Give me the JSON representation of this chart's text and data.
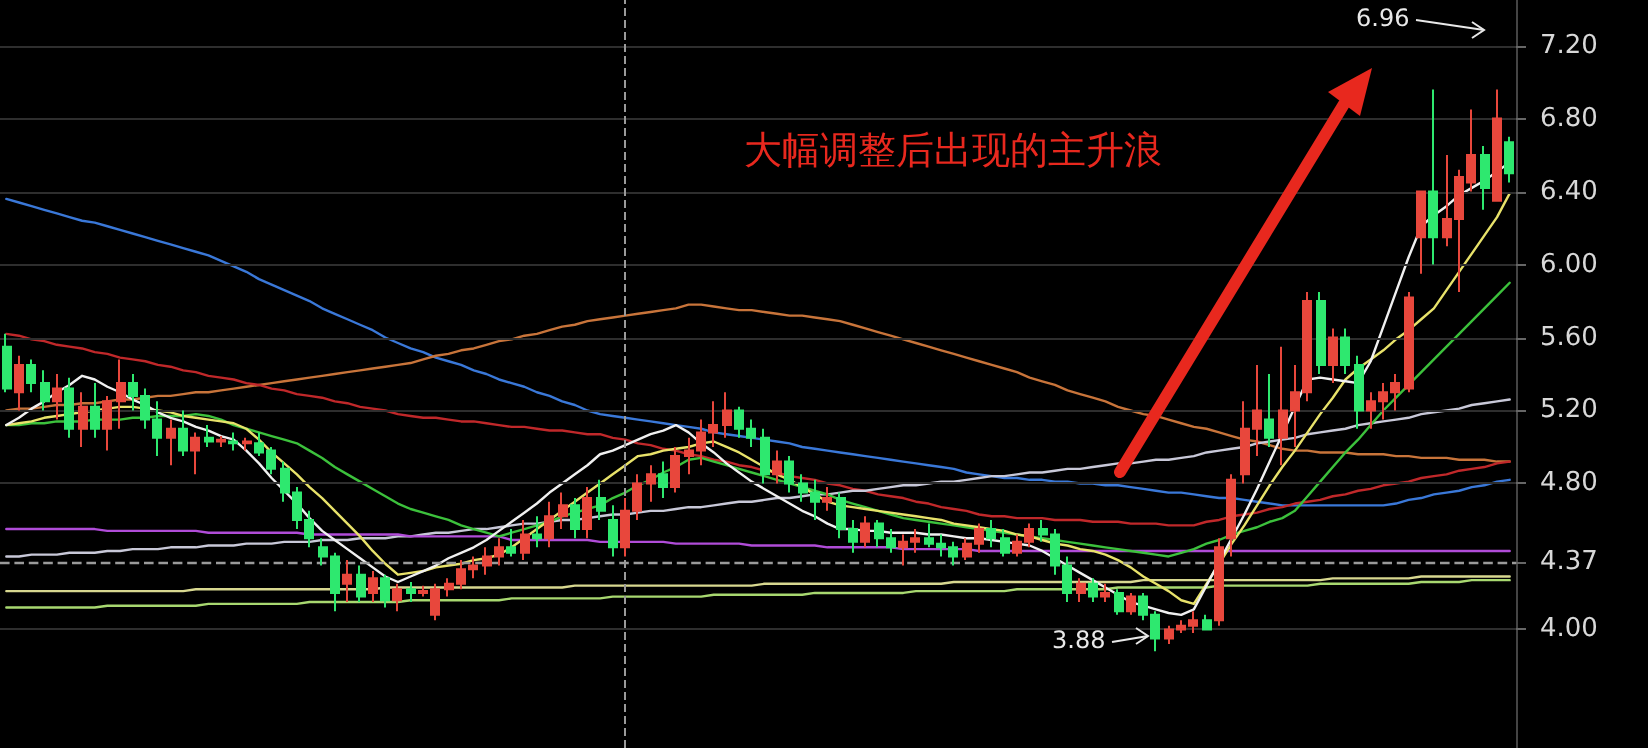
{
  "chart_data": {
    "type": "candlestick",
    "categories": [
      null,
      null,
      null,
      null,
      null,
      null,
      null,
      null,
      null,
      null,
      null,
      null,
      null,
      null,
      null,
      null,
      null,
      null,
      null,
      null,
      null,
      null,
      null,
      null,
      null,
      null,
      null,
      null,
      null,
      null,
      null,
      null,
      null,
      null,
      null,
      null,
      null,
      null,
      null,
      null,
      null,
      null,
      null,
      null,
      null,
      null,
      null,
      null,
      null,
      null,
      null,
      null,
      null,
      null,
      null,
      null,
      null,
      null,
      null,
      null,
      null,
      null,
      null,
      null,
      null,
      null,
      null,
      null,
      null,
      null,
      null,
      null,
      null,
      null,
      null,
      null,
      null,
      null,
      null,
      null,
      null,
      null,
      null,
      null,
      null,
      null,
      null,
      null,
      null,
      null,
      null,
      null,
      null,
      null,
      null,
      null,
      null,
      null,
      null,
      null,
      null,
      null,
      null,
      null,
      null,
      null,
      null,
      null,
      null,
      null,
      null,
      null,
      null,
      null,
      null,
      null,
      null,
      null,
      null,
      null
    ],
    "ohlc": [
      [
        5.55,
        5.62,
        5.3,
        5.32
      ],
      [
        5.3,
        5.5,
        5.2,
        5.45
      ],
      [
        5.45,
        5.48,
        5.3,
        5.35
      ],
      [
        5.35,
        5.42,
        5.2,
        5.25
      ],
      [
        5.25,
        5.4,
        5.15,
        5.32
      ],
      [
        5.32,
        5.38,
        5.05,
        5.1
      ],
      [
        5.1,
        5.3,
        5.0,
        5.22
      ],
      [
        5.22,
        5.35,
        5.05,
        5.1
      ],
      [
        5.1,
        5.28,
        4.98,
        5.25
      ],
      [
        5.25,
        5.48,
        5.1,
        5.35
      ],
      [
        5.35,
        5.4,
        5.2,
        5.28
      ],
      [
        5.28,
        5.32,
        5.1,
        5.15
      ],
      [
        5.15,
        5.25,
        4.95,
        5.05
      ],
      [
        5.05,
        5.15,
        4.9,
        5.1
      ],
      [
        5.1,
        5.2,
        4.95,
        4.98
      ],
      [
        4.98,
        5.08,
        4.85,
        5.05
      ],
      [
        5.05,
        5.12,
        5.0,
        5.03
      ],
      [
        5.03,
        5.06,
        5.0,
        5.04
      ],
      [
        5.03,
        5.08,
        4.98,
        5.02
      ],
      [
        5.02,
        5.05,
        4.98,
        5.03
      ],
      [
        5.02,
        5.08,
        4.95,
        4.97
      ],
      [
        4.98,
        5.0,
        4.85,
        4.88
      ],
      [
        4.88,
        4.92,
        4.7,
        4.75
      ],
      [
        4.75,
        4.78,
        4.55,
        4.6
      ],
      [
        4.6,
        4.65,
        4.45,
        4.5
      ],
      [
        4.45,
        4.5,
        4.35,
        4.4
      ],
      [
        4.4,
        4.42,
        4.1,
        4.2
      ],
      [
        4.25,
        4.38,
        4.15,
        4.3
      ],
      [
        4.3,
        4.35,
        4.15,
        4.18
      ],
      [
        4.2,
        4.32,
        4.15,
        4.28
      ],
      [
        4.28,
        4.3,
        4.12,
        4.16
      ],
      [
        4.16,
        4.25,
        4.1,
        4.22
      ],
      [
        4.22,
        4.26,
        4.15,
        4.2
      ],
      [
        4.2,
        4.24,
        4.18,
        4.21
      ],
      [
        4.08,
        4.25,
        4.05,
        4.22
      ],
      [
        4.22,
        4.28,
        4.18,
        4.25
      ],
      [
        4.25,
        4.38,
        4.22,
        4.33
      ],
      [
        4.33,
        4.4,
        4.28,
        4.35
      ],
      [
        4.35,
        4.45,
        4.3,
        4.4
      ],
      [
        4.4,
        4.5,
        4.35,
        4.45
      ],
      [
        4.45,
        4.55,
        4.4,
        4.42
      ],
      [
        4.42,
        4.6,
        4.38,
        4.52
      ],
      [
        4.52,
        4.62,
        4.45,
        4.5
      ],
      [
        4.5,
        4.7,
        4.45,
        4.62
      ],
      [
        4.62,
        4.75,
        4.55,
        4.68
      ],
      [
        4.68,
        4.72,
        4.5,
        4.55
      ],
      [
        4.55,
        4.78,
        4.5,
        4.72
      ],
      [
        4.72,
        4.82,
        4.6,
        4.65
      ],
      [
        4.6,
        4.68,
        4.4,
        4.45
      ],
      [
        4.45,
        4.72,
        4.4,
        4.65
      ],
      [
        4.65,
        4.85,
        4.6,
        4.8
      ],
      [
        4.8,
        4.9,
        4.7,
        4.85
      ],
      [
        4.85,
        4.92,
        4.72,
        4.78
      ],
      [
        4.78,
        5.0,
        4.75,
        4.95
      ],
      [
        4.95,
        5.05,
        4.85,
        4.98
      ],
      [
        4.98,
        5.15,
        4.9,
        5.08
      ],
      [
        5.08,
        5.25,
        5.0,
        5.12
      ],
      [
        5.12,
        5.3,
        5.05,
        5.2
      ],
      [
        5.2,
        5.22,
        5.05,
        5.1
      ],
      [
        5.1,
        5.15,
        5.0,
        5.05
      ],
      [
        5.05,
        5.1,
        4.8,
        4.85
      ],
      [
        4.85,
        4.98,
        4.8,
        4.92
      ],
      [
        4.92,
        4.95,
        4.75,
        4.8
      ],
      [
        4.8,
        4.85,
        4.7,
        4.75
      ],
      [
        4.75,
        4.82,
        4.6,
        4.7
      ],
      [
        4.7,
        4.78,
        4.65,
        4.72
      ],
      [
        4.72,
        4.75,
        4.5,
        4.55
      ],
      [
        4.55,
        4.6,
        4.42,
        4.48
      ],
      [
        4.48,
        4.62,
        4.45,
        4.58
      ],
      [
        4.58,
        4.6,
        4.45,
        4.5
      ],
      [
        4.5,
        4.55,
        4.42,
        4.45
      ],
      [
        4.45,
        4.52,
        4.35,
        4.48
      ],
      [
        4.48,
        4.55,
        4.42,
        4.5
      ],
      [
        4.5,
        4.58,
        4.45,
        4.47
      ],
      [
        4.47,
        4.52,
        4.4,
        4.45
      ],
      [
        4.45,
        4.48,
        4.35,
        4.4
      ],
      [
        4.4,
        4.5,
        4.38,
        4.47
      ],
      [
        4.47,
        4.58,
        4.42,
        4.55
      ],
      [
        4.55,
        4.6,
        4.45,
        4.5
      ],
      [
        4.5,
        4.55,
        4.4,
        4.42
      ],
      [
        4.42,
        4.52,
        4.4,
        4.48
      ],
      [
        4.48,
        4.58,
        4.45,
        4.55
      ],
      [
        4.55,
        4.6,
        4.48,
        4.52
      ],
      [
        4.52,
        4.55,
        4.3,
        4.35
      ],
      [
        4.35,
        4.4,
        4.15,
        4.2
      ],
      [
        4.2,
        4.28,
        4.15,
        4.25
      ],
      [
        4.25,
        4.28,
        4.15,
        4.18
      ],
      [
        4.18,
        4.25,
        4.15,
        4.2
      ],
      [
        4.2,
        4.22,
        4.08,
        4.1
      ],
      [
        4.1,
        4.2,
        4.08,
        4.18
      ],
      [
        4.18,
        4.2,
        4.05,
        4.08
      ],
      [
        4.08,
        4.1,
        3.88,
        3.95
      ],
      [
        3.95,
        4.02,
        3.92,
        4.0
      ],
      [
        4.0,
        4.05,
        3.98,
        4.02
      ],
      [
        4.02,
        4.1,
        3.98,
        4.05
      ],
      [
        4.05,
        4.08,
        4.0,
        4.0
      ],
      [
        4.05,
        4.5,
        4.02,
        4.45
      ],
      [
        4.5,
        4.85,
        4.4,
        4.82
      ],
      [
        4.85,
        5.25,
        4.8,
        5.1
      ],
      [
        5.1,
        5.45,
        4.95,
        5.2
      ],
      [
        5.15,
        5.4,
        5.0,
        5.05
      ],
      [
        5.05,
        5.55,
        4.9,
        5.2
      ],
      [
        5.2,
        5.45,
        5.0,
        5.3
      ],
      [
        5.3,
        5.85,
        5.25,
        5.8
      ],
      [
        5.8,
        5.85,
        5.4,
        5.45
      ],
      [
        5.45,
        5.65,
        5.35,
        5.6
      ],
      [
        5.6,
        5.65,
        5.4,
        5.45
      ],
      [
        5.45,
        5.5,
        5.1,
        5.2
      ],
      [
        5.2,
        5.3,
        5.1,
        5.25
      ],
      [
        5.25,
        5.35,
        5.15,
        5.3
      ],
      [
        5.3,
        5.4,
        5.2,
        5.35
      ],
      [
        5.32,
        5.85,
        5.3,
        5.82
      ],
      [
        6.15,
        6.4,
        5.95,
        6.4
      ],
      [
        6.4,
        6.96,
        6.0,
        6.15
      ],
      [
        6.15,
        6.6,
        6.1,
        6.25
      ],
      [
        6.25,
        6.52,
        5.85,
        6.48
      ],
      [
        6.45,
        6.85,
        6.4,
        6.6
      ],
      [
        6.6,
        6.65,
        6.3,
        6.42
      ],
      [
        6.35,
        6.96,
        6.35,
        6.8
      ],
      [
        6.67,
        6.7,
        6.45,
        6.5
      ]
    ],
    "colors": [
      "#2ee86f",
      "#e8473c",
      "#2ee86f",
      "#2ee86f",
      "#e8473c",
      "#2ee86f",
      "#e8473c",
      "#2ee86f",
      "#e8473c",
      "#e8473c",
      "#2ee86f",
      "#2ee86f",
      "#2ee86f",
      "#e8473c",
      "#2ee86f",
      "#e8473c",
      "#2ee86f",
      "#e8473c",
      "#2ee86f",
      "#e8473c",
      "#2ee86f",
      "#2ee86f",
      "#2ee86f",
      "#2ee86f",
      "#2ee86f",
      "#2ee86f",
      "#2ee86f",
      "#e8473c",
      "#2ee86f",
      "#e8473c",
      "#2ee86f",
      "#e8473c",
      "#2ee86f",
      "#e8473c",
      "#e8473c",
      "#e8473c",
      "#e8473c",
      "#e8473c",
      "#e8473c",
      "#e8473c",
      "#2ee86f",
      "#e8473c",
      "#2ee86f",
      "#e8473c",
      "#e8473c",
      "#2ee86f",
      "#e8473c",
      "#2ee86f",
      "#2ee86f",
      "#e8473c",
      "#e8473c",
      "#e8473c",
      "#2ee86f",
      "#e8473c",
      "#e8473c",
      "#e8473c",
      "#e8473c",
      "#e8473c",
      "#2ee86f",
      "#2ee86f",
      "#2ee86f",
      "#e8473c",
      "#2ee86f",
      "#2ee86f",
      "#2ee86f",
      "#e8473c",
      "#2ee86f",
      "#2ee86f",
      "#e8473c",
      "#2ee86f",
      "#2ee86f",
      "#e8473c",
      "#e8473c",
      "#2ee86f",
      "#2ee86f",
      "#2ee86f",
      "#e8473c",
      "#e8473c",
      "#2ee86f",
      "#2ee86f",
      "#e8473c",
      "#e8473c",
      "#2ee86f",
      "#2ee86f",
      "#2ee86f",
      "#e8473c",
      "#2ee86f",
      "#e8473c",
      "#2ee86f",
      "#e8473c",
      "#2ee86f",
      "#2ee86f",
      "#e8473c",
      "#e8473c",
      "#e8473c",
      "#2ee86f",
      "#e8473c",
      "#e8473c",
      "#e8473c",
      "#e8473c",
      "#2ee86f",
      "#e8473c",
      "#e8473c",
      "#e8473c",
      "#2ee86f",
      "#e8473c",
      "#2ee86f",
      "#2ee86f",
      "#e8473c",
      "#e8473c",
      "#e8473c",
      "#e8473c",
      "#e8473c",
      "#2ee86f",
      "#e8473c",
      "#e8473c",
      "#e8473c",
      "#2ee86f",
      "#e8473c",
      "#2ee86f"
    ],
    "series": [
      {
        "type": "line",
        "color": "#3a78d8",
        "values": [
          6.36,
          6.34,
          6.32,
          6.3,
          6.28,
          6.26,
          6.24,
          6.23,
          6.21,
          6.19,
          6.17,
          6.15,
          6.13,
          6.11,
          6.09,
          6.07,
          6.05,
          6.02,
          5.99,
          5.96,
          5.92,
          5.89,
          5.86,
          5.83,
          5.8,
          5.76,
          5.73,
          5.7,
          5.67,
          5.64,
          5.6,
          5.57,
          5.54,
          5.52,
          5.49,
          5.47,
          5.45,
          5.42,
          5.4,
          5.37,
          5.35,
          5.33,
          5.3,
          5.28,
          5.25,
          5.23,
          5.2,
          5.18,
          5.17,
          5.16,
          5.15,
          5.14,
          5.13,
          5.12,
          5.11,
          5.1,
          5.08,
          5.07,
          5.06,
          5.05,
          5.04,
          5.03,
          5.02,
          5.0,
          4.99,
          4.98,
          4.97,
          4.96,
          4.95,
          4.94,
          4.93,
          4.92,
          4.91,
          4.9,
          4.89,
          4.88,
          4.86,
          4.85,
          4.84,
          4.83,
          4.83,
          4.82,
          4.82,
          4.81,
          4.81,
          4.8,
          4.8,
          4.79,
          4.79,
          4.78,
          4.77,
          4.76,
          4.75,
          4.75,
          4.74,
          4.73,
          4.72,
          4.72,
          4.71,
          4.7,
          4.69,
          4.68,
          4.68,
          4.68,
          4.68,
          4.68,
          4.68,
          4.68,
          4.68,
          4.68,
          4.69,
          4.71,
          4.72,
          4.74,
          4.75,
          4.76,
          4.78,
          4.79,
          4.81,
          4.82
        ]
      },
      {
        "type": "line",
        "color": "#c8743a",
        "values": [
          5.2,
          5.21,
          5.21,
          5.22,
          5.23,
          5.23,
          5.24,
          5.24,
          5.25,
          5.26,
          5.26,
          5.27,
          5.28,
          5.28,
          5.29,
          5.3,
          5.3,
          5.31,
          5.32,
          5.33,
          5.34,
          5.35,
          5.36,
          5.37,
          5.38,
          5.39,
          5.4,
          5.41,
          5.42,
          5.43,
          5.44,
          5.45,
          5.46,
          5.48,
          5.5,
          5.51,
          5.53,
          5.54,
          5.56,
          5.58,
          5.59,
          5.61,
          5.62,
          5.64,
          5.66,
          5.67,
          5.69,
          5.7,
          5.71,
          5.72,
          5.73,
          5.74,
          5.75,
          5.76,
          5.78,
          5.78,
          5.77,
          5.76,
          5.75,
          5.75,
          5.74,
          5.73,
          5.72,
          5.72,
          5.71,
          5.7,
          5.69,
          5.67,
          5.65,
          5.63,
          5.61,
          5.59,
          5.57,
          5.55,
          5.53,
          5.51,
          5.49,
          5.47,
          5.45,
          5.43,
          5.41,
          5.38,
          5.36,
          5.34,
          5.31,
          5.29,
          5.27,
          5.25,
          5.22,
          5.2,
          5.18,
          5.17,
          5.15,
          5.13,
          5.11,
          5.1,
          5.08,
          5.06,
          5.04,
          5.03,
          5.01,
          4.99,
          4.98,
          4.98,
          4.97,
          4.97,
          4.97,
          4.96,
          4.96,
          4.96,
          4.95,
          4.95,
          4.94,
          4.94,
          4.94,
          4.93,
          4.93,
          4.93,
          4.92,
          4.92
        ]
      },
      {
        "type": "line",
        "color": "#c0282a",
        "values": [
          5.62,
          5.61,
          5.59,
          5.58,
          5.56,
          5.55,
          5.54,
          5.52,
          5.51,
          5.49,
          5.48,
          5.47,
          5.45,
          5.44,
          5.42,
          5.41,
          5.39,
          5.38,
          5.37,
          5.35,
          5.34,
          5.32,
          5.31,
          5.29,
          5.28,
          5.27,
          5.25,
          5.24,
          5.22,
          5.21,
          5.2,
          5.18,
          5.17,
          5.16,
          5.16,
          5.15,
          5.14,
          5.14,
          5.13,
          5.12,
          5.11,
          5.11,
          5.1,
          5.09,
          5.09,
          5.08,
          5.07,
          5.07,
          5.05,
          5.04,
          5.02,
          5.01,
          4.99,
          4.98,
          4.96,
          4.95,
          4.93,
          4.92,
          4.9,
          4.89,
          4.87,
          4.86,
          4.84,
          4.83,
          4.82,
          4.8,
          4.79,
          4.77,
          4.76,
          4.74,
          4.73,
          4.72,
          4.7,
          4.69,
          4.67,
          4.66,
          4.65,
          4.63,
          4.62,
          4.62,
          4.61,
          4.61,
          4.61,
          4.6,
          4.6,
          4.6,
          4.59,
          4.59,
          4.59,
          4.58,
          4.58,
          4.58,
          4.57,
          4.57,
          4.57,
          4.59,
          4.6,
          4.62,
          4.63,
          4.64,
          4.66,
          4.67,
          4.69,
          4.7,
          4.71,
          4.73,
          4.74,
          4.76,
          4.77,
          4.79,
          4.8,
          4.81,
          4.83,
          4.84,
          4.85,
          4.87,
          4.88,
          4.89,
          4.91,
          4.92
        ]
      },
      {
        "type": "line",
        "color": "#c8c8d8",
        "values": [
          4.4,
          4.4,
          4.41,
          4.41,
          4.41,
          4.42,
          4.42,
          4.42,
          4.43,
          4.43,
          4.44,
          4.44,
          4.44,
          4.45,
          4.45,
          4.45,
          4.46,
          4.46,
          4.46,
          4.47,
          4.47,
          4.47,
          4.48,
          4.48,
          4.48,
          4.49,
          4.49,
          4.49,
          4.5,
          4.5,
          4.5,
          4.51,
          4.51,
          4.52,
          4.53,
          4.53,
          4.54,
          4.55,
          4.55,
          4.56,
          4.57,
          4.58,
          4.58,
          4.59,
          4.6,
          4.6,
          4.61,
          4.62,
          4.63,
          4.63,
          4.64,
          4.65,
          4.65,
          4.66,
          4.67,
          4.67,
          4.68,
          4.69,
          4.7,
          4.7,
          4.71,
          4.72,
          4.72,
          4.73,
          4.74,
          4.74,
          4.75,
          4.76,
          4.76,
          4.77,
          4.78,
          4.79,
          4.79,
          4.8,
          4.81,
          4.81,
          4.82,
          4.83,
          4.84,
          4.84,
          4.85,
          4.86,
          4.86,
          4.87,
          4.88,
          4.88,
          4.89,
          4.9,
          4.91,
          4.91,
          4.92,
          4.93,
          4.93,
          4.94,
          4.95,
          4.97,
          4.98,
          4.99,
          5.0,
          5.02,
          5.03,
          5.04,
          5.05,
          5.07,
          5.08,
          5.09,
          5.1,
          5.12,
          5.13,
          5.14,
          5.15,
          5.16,
          5.18,
          5.19,
          5.2,
          5.21,
          5.23,
          5.24,
          5.25,
          5.26
        ]
      },
      {
        "type": "line",
        "color": "#b04cd8",
        "values": [
          4.55,
          4.55,
          4.55,
          4.55,
          4.55,
          4.55,
          4.55,
          4.55,
          4.54,
          4.54,
          4.54,
          4.54,
          4.54,
          4.54,
          4.54,
          4.54,
          4.53,
          4.53,
          4.53,
          4.53,
          4.53,
          4.53,
          4.53,
          4.53,
          4.52,
          4.52,
          4.52,
          4.52,
          4.52,
          4.52,
          4.52,
          4.52,
          4.51,
          4.51,
          4.51,
          4.51,
          4.51,
          4.51,
          4.51,
          4.51,
          4.49,
          4.49,
          4.49,
          4.49,
          4.49,
          4.49,
          4.49,
          4.48,
          4.48,
          4.48,
          4.48,
          4.48,
          4.48,
          4.47,
          4.47,
          4.47,
          4.47,
          4.47,
          4.47,
          4.46,
          4.46,
          4.46,
          4.46,
          4.46,
          4.46,
          4.45,
          4.45,
          4.45,
          4.45,
          4.45,
          4.45,
          4.44,
          4.44,
          4.44,
          4.44,
          4.44,
          4.44,
          4.43,
          4.43,
          4.43,
          4.43,
          4.43,
          4.43,
          4.43,
          4.43,
          4.43,
          4.43,
          4.43,
          4.43,
          4.43,
          4.43,
          4.43,
          4.43,
          4.43,
          4.43,
          4.43,
          4.43,
          4.43,
          4.43,
          4.43,
          4.43,
          4.43,
          4.43,
          4.43,
          4.43,
          4.43,
          4.43,
          4.43,
          4.43,
          4.43,
          4.43,
          4.43,
          4.43,
          4.43,
          4.43,
          4.43,
          4.43,
          4.43,
          4.43,
          4.43
        ]
      },
      {
        "type": "line",
        "color": "#d8d890",
        "values": [
          4.21,
          4.21,
          4.21,
          4.21,
          4.21,
          4.21,
          4.21,
          4.21,
          4.21,
          4.21,
          4.21,
          4.21,
          4.21,
          4.21,
          4.21,
          4.22,
          4.22,
          4.22,
          4.22,
          4.22,
          4.22,
          4.22,
          4.22,
          4.22,
          4.22,
          4.22,
          4.22,
          4.22,
          4.22,
          4.22,
          4.23,
          4.23,
          4.23,
          4.23,
          4.23,
          4.23,
          4.23,
          4.23,
          4.23,
          4.23,
          4.23,
          4.23,
          4.23,
          4.23,
          4.23,
          4.24,
          4.24,
          4.24,
          4.24,
          4.24,
          4.24,
          4.24,
          4.24,
          4.24,
          4.24,
          4.24,
          4.24,
          4.24,
          4.24,
          4.24,
          4.25,
          4.25,
          4.25,
          4.25,
          4.25,
          4.25,
          4.25,
          4.25,
          4.25,
          4.25,
          4.25,
          4.25,
          4.25,
          4.25,
          4.25,
          4.26,
          4.26,
          4.26,
          4.26,
          4.26,
          4.26,
          4.26,
          4.26,
          4.26,
          4.26,
          4.26,
          4.26,
          4.26,
          4.26,
          4.26,
          4.27,
          4.27,
          4.27,
          4.27,
          4.27,
          4.27,
          4.27,
          4.27,
          4.27,
          4.27,
          4.27,
          4.27,
          4.27,
          4.27,
          4.27,
          4.28,
          4.28,
          4.28,
          4.28,
          4.28,
          4.28,
          4.28,
          4.29,
          4.29,
          4.29,
          4.29,
          4.29,
          4.29,
          4.29,
          4.29
        ]
      },
      {
        "type": "line",
        "color": "#a8d870",
        "values": [
          4.12,
          4.12,
          4.12,
          4.12,
          4.12,
          4.12,
          4.12,
          4.12,
          4.13,
          4.13,
          4.13,
          4.13,
          4.13,
          4.13,
          4.13,
          4.13,
          4.14,
          4.14,
          4.14,
          4.14,
          4.14,
          4.14,
          4.14,
          4.14,
          4.15,
          4.15,
          4.15,
          4.15,
          4.15,
          4.15,
          4.15,
          4.15,
          4.16,
          4.16,
          4.16,
          4.16,
          4.16,
          4.16,
          4.16,
          4.16,
          4.17,
          4.17,
          4.17,
          4.17,
          4.17,
          4.17,
          4.17,
          4.17,
          4.18,
          4.18,
          4.18,
          4.18,
          4.18,
          4.18,
          4.18,
          4.18,
          4.19,
          4.19,
          4.19,
          4.19,
          4.19,
          4.19,
          4.19,
          4.19,
          4.2,
          4.2,
          4.2,
          4.2,
          4.2,
          4.2,
          4.2,
          4.2,
          4.21,
          4.21,
          4.21,
          4.21,
          4.21,
          4.21,
          4.21,
          4.21,
          4.22,
          4.22,
          4.22,
          4.22,
          4.22,
          4.22,
          4.22,
          4.22,
          4.23,
          4.23,
          4.23,
          4.23,
          4.23,
          4.23,
          4.23,
          4.23,
          4.24,
          4.24,
          4.24,
          4.24,
          4.24,
          4.24,
          4.24,
          4.24,
          4.25,
          4.25,
          4.25,
          4.25,
          4.25,
          4.25,
          4.25,
          4.25,
          4.26,
          4.26,
          4.26,
          4.26,
          4.27,
          4.27,
          4.27,
          4.27
        ]
      },
      {
        "type": "line",
        "color": "#3cc13c",
        "values": [
          5.12,
          5.12,
          5.13,
          5.13,
          5.14,
          5.14,
          5.14,
          5.15,
          5.15,
          5.15,
          5.16,
          5.16,
          5.17,
          5.17,
          5.17,
          5.18,
          5.17,
          5.15,
          5.12,
          5.1,
          5.08,
          5.06,
          5.04,
          5.02,
          4.98,
          4.94,
          4.89,
          4.85,
          4.81,
          4.77,
          4.73,
          4.69,
          4.66,
          4.64,
          4.62,
          4.6,
          4.57,
          4.55,
          4.53,
          4.51,
          4.53,
          4.55,
          4.57,
          4.59,
          4.62,
          4.64,
          4.66,
          4.68,
          4.72,
          4.75,
          4.79,
          4.82,
          4.86,
          4.89,
          4.93,
          4.94,
          4.92,
          4.9,
          4.88,
          4.86,
          4.84,
          4.82,
          4.8,
          4.78,
          4.76,
          4.74,
          4.71,
          4.69,
          4.67,
          4.65,
          4.63,
          4.61,
          4.6,
          4.59,
          4.58,
          4.57,
          4.56,
          4.55,
          4.54,
          4.53,
          4.52,
          4.51,
          4.5,
          4.49,
          4.48,
          4.47,
          4.46,
          4.45,
          4.44,
          4.43,
          4.42,
          4.41,
          4.4,
          4.42,
          4.44,
          4.47,
          4.49,
          4.52,
          4.54,
          4.56,
          4.59,
          4.61,
          4.65,
          4.73,
          4.81,
          4.89,
          4.97,
          5.04,
          5.12,
          5.2,
          5.27,
          5.34,
          5.41,
          5.48,
          5.55,
          5.62,
          5.69,
          5.76,
          5.83,
          5.9
        ]
      },
      {
        "type": "line",
        "color": "#e8e26a",
        "values": [
          5.12,
          5.13,
          5.14,
          5.16,
          5.17,
          5.18,
          5.19,
          5.2,
          5.21,
          5.22,
          5.22,
          5.21,
          5.2,
          5.19,
          5.17,
          5.16,
          5.15,
          5.14,
          5.13,
          5.1,
          5.04,
          4.97,
          4.91,
          4.85,
          4.78,
          4.72,
          4.65,
          4.58,
          4.51,
          4.43,
          4.36,
          4.3,
          4.31,
          4.32,
          4.34,
          4.35,
          4.36,
          4.38,
          4.39,
          4.41,
          4.45,
          4.5,
          4.55,
          4.6,
          4.65,
          4.7,
          4.75,
          4.8,
          4.85,
          4.9,
          4.95,
          4.96,
          4.98,
          4.99,
          5.0,
          5.02,
          5.03,
          5.0,
          4.97,
          4.93,
          4.89,
          4.85,
          4.82,
          4.78,
          4.74,
          4.7,
          4.68,
          4.67,
          4.66,
          4.65,
          4.64,
          4.63,
          4.62,
          4.61,
          4.6,
          4.58,
          4.57,
          4.56,
          4.55,
          4.54,
          4.52,
          4.51,
          4.49,
          4.47,
          4.46,
          4.44,
          4.43,
          4.41,
          4.38,
          4.34,
          4.29,
          4.25,
          4.21,
          4.16,
          4.14,
          4.25,
          4.36,
          4.47,
          4.57,
          4.68,
          4.79,
          4.89,
          4.98,
          5.08,
          5.18,
          5.27,
          5.37,
          5.43,
          5.48,
          5.53,
          5.59,
          5.64,
          5.7,
          5.76,
          5.86,
          5.96,
          6.06,
          6.16,
          6.26,
          6.39
        ]
      },
      {
        "type": "line",
        "color": "#f0f0f0",
        "values": [
          5.12,
          5.16,
          5.21,
          5.25,
          5.3,
          5.34,
          5.39,
          5.37,
          5.33,
          5.3,
          5.26,
          5.23,
          5.19,
          5.16,
          5.14,
          5.11,
          5.09,
          5.06,
          5.04,
          4.98,
          4.91,
          4.83,
          4.76,
          4.69,
          4.61,
          4.54,
          4.49,
          4.44,
          4.39,
          4.34,
          4.29,
          4.26,
          4.29,
          4.32,
          4.35,
          4.39,
          4.42,
          4.45,
          4.49,
          4.54,
          4.59,
          4.64,
          4.69,
          4.75,
          4.8,
          4.85,
          4.9,
          4.96,
          4.98,
          5.01,
          5.04,
          5.07,
          5.09,
          5.12,
          5.08,
          5.02,
          4.97,
          4.91,
          4.86,
          4.81,
          4.77,
          4.73,
          4.69,
          4.65,
          4.62,
          4.58,
          4.55,
          4.55,
          4.54,
          4.54,
          4.53,
          4.53,
          4.53,
          4.52,
          4.52,
          4.51,
          4.5,
          4.5,
          4.49,
          4.48,
          4.47,
          4.46,
          4.43,
          4.39,
          4.35,
          4.31,
          4.27,
          4.23,
          4.19,
          4.15,
          4.13,
          4.11,
          4.09,
          4.08,
          4.11,
          4.24,
          4.37,
          4.5,
          4.63,
          4.77,
          4.92,
          5.07,
          5.22,
          5.37,
          5.38,
          5.37,
          5.36,
          5.35,
          5.47,
          5.66,
          5.85,
          6.04,
          6.21,
          6.27,
          6.32,
          6.38,
          6.42,
          6.46,
          6.51,
          6.56
        ]
      }
    ],
    "ylim": [
      3.35,
      7.45
    ],
    "yticks": [
      {
        "value": 4,
        "label": "4.00"
      },
      {
        "value": 4.37,
        "label": "4.37"
      },
      {
        "value": 4.8,
        "label": "4.80"
      },
      {
        "value": 5.2,
        "label": "5.20"
      },
      {
        "value": 5.6,
        "label": "5.60"
      },
      {
        "value": 6,
        "label": "6.00"
      },
      {
        "value": 6.4,
        "label": "6.40"
      },
      {
        "value": 6.8,
        "label": "6.80"
      },
      {
        "value": 7.2,
        "label": "7.20"
      }
    ],
    "tick_labels": "y",
    "grid": "y",
    "line_style": "solid",
    "ref_lines": [
      {
        "axis": "y",
        "value": 4.37,
        "color": "#9a9a9a",
        "line_style": "dashed"
      }
    ],
    "annotations": [
      "大幅调整后出现的主升浪",
      "6.96",
      "3.88"
    ]
  }
}
